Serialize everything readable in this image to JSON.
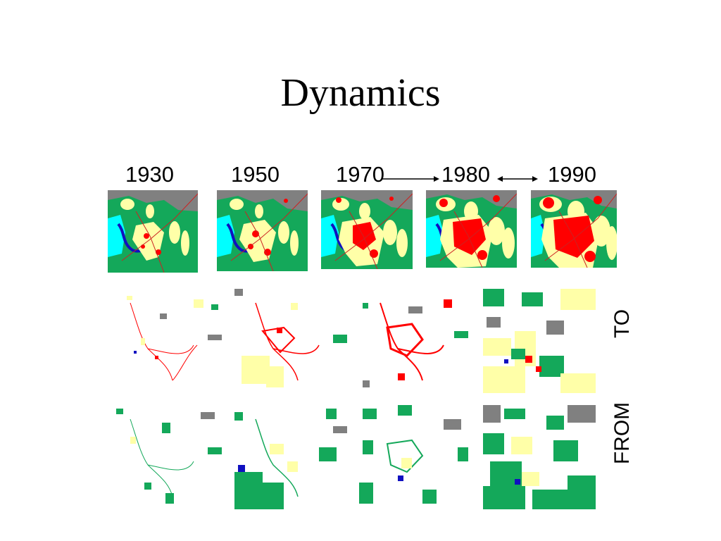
{
  "title": "Dynamics",
  "years": [
    "1930",
    "1950",
    "1970",
    "1980",
    "1990"
  ],
  "row_labels": {
    "to": "TO",
    "from": "FROM"
  },
  "legend_colors": {
    "urban": "#ff0000",
    "agriculture": "#ffffa8",
    "forest": "#14a85a",
    "water": "#00ffff",
    "wetland": "#1010c0",
    "other": "#808080",
    "roads": "#cc2222"
  }
}
